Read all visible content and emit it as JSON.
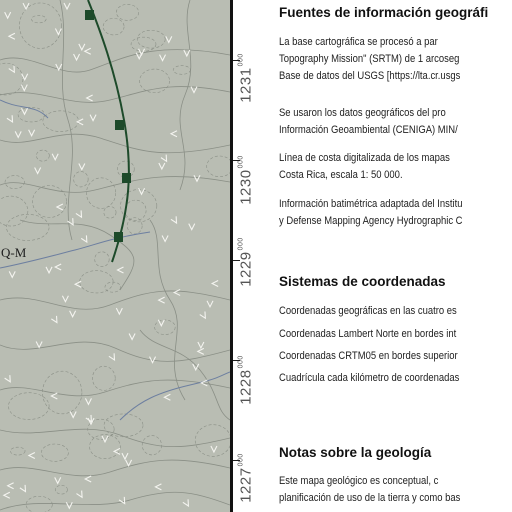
{
  "map": {
    "unit_label": "Q-M",
    "background_color": "#b9bdb3",
    "fault_color": "#1d4a2a",
    "contour_color": "#8a8f86",
    "river_color": "#6d7fa0"
  },
  "grid": {
    "y_labels": [
      {
        "value": "1231",
        "suffix": "000"
      },
      {
        "value": "1230",
        "suffix": "000"
      },
      {
        "value": "1229",
        "suffix": "000"
      },
      {
        "value": "1228",
        "suffix": "000"
      },
      {
        "value": "1227",
        "suffix": "000"
      }
    ]
  },
  "legend": {
    "sources": {
      "title": "Fuentes de información geográfi",
      "lines": [
        "La base cartográfica se procesó a par",
        "Topography Mission\" (SRTM) de 1 arcoseg",
        "Base de datos del USGS [https://lta.cr.usgs",
        "Se usaron los datos geográficos del pro",
        "Información Geoambiental (CENIGA) MIN/",
        "Línea de costa digitalizada de los mapas",
        "Costa Rica, escala 1: 50 000.",
        "Información batimétrica adaptada del Institu",
        "y Defense Mapping Agency Hydrographic C"
      ]
    },
    "coordinates": {
      "title": "Sistemas de coordenadas",
      "lines": [
        "Coordenadas geográficas en las cuatro es",
        "Coordenadas Lambert Norte en bordes  int",
        "Coordenadas CRTM05 en bordes superior",
        "Cuadrícula cada kilómetro de coordenadas"
      ]
    },
    "geology": {
      "title": "Notas sobre la geología",
      "lines": [
        "Este mapa geológico es conceptual, c",
        "planificación de uso de la tierra y como bas"
      ]
    }
  }
}
